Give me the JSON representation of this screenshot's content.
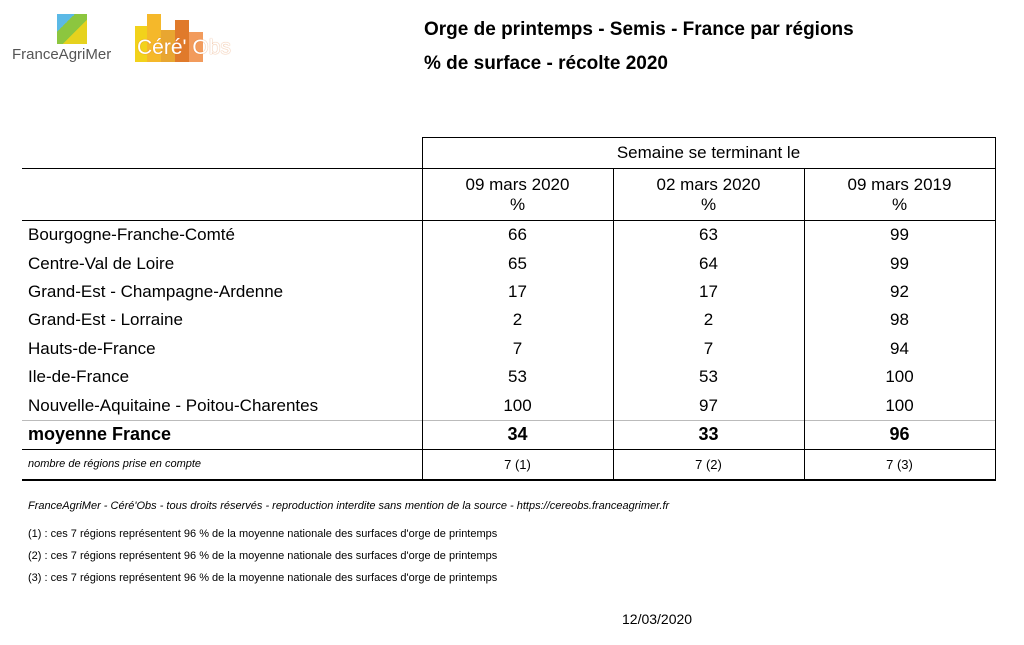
{
  "logos": {
    "franceagrimer": "FranceAgriMer",
    "cereobs": "Céré' Obs"
  },
  "title": {
    "line1": "Orge de printemps - Semis - France par régions",
    "line2": "% de surface - récolte 2020"
  },
  "table": {
    "group_header": "Semaine se terminant le",
    "columns": [
      {
        "date": "09 mars 2020",
        "unit": "%"
      },
      {
        "date": "02 mars 2020",
        "unit": "%"
      },
      {
        "date": "09 mars 2019",
        "unit": "%"
      }
    ],
    "rows": [
      {
        "region": "Bourgogne-Franche-Comté",
        "values": [
          "66",
          "63",
          "99"
        ]
      },
      {
        "region": "Centre-Val de Loire",
        "values": [
          "65",
          "64",
          "99"
        ]
      },
      {
        "region": "Grand-Est - Champagne-Ardenne",
        "values": [
          "17",
          "17",
          "92"
        ]
      },
      {
        "region": "Grand-Est - Lorraine",
        "values": [
          "2",
          "2",
          "98"
        ]
      },
      {
        "region": "Hauts-de-France",
        "values": [
          "7",
          "7",
          "94"
        ]
      },
      {
        "region": "Ile-de-France",
        "values": [
          "53",
          "53",
          "100"
        ]
      },
      {
        "region": "Nouvelle-Aquitaine - Poitou-Charentes",
        "values": [
          "100",
          "97",
          "100"
        ]
      }
    ],
    "average": {
      "label": "moyenne France",
      "values": [
        "34",
        "33",
        "96"
      ]
    },
    "count": {
      "label": "nombre de régions prise en compte",
      "values": [
        "7 (1)",
        "7 (2)",
        "7 (3)"
      ]
    }
  },
  "footer": {
    "copyright": "FranceAgriMer - Céré'Obs - tous droits réservés - reproduction interdite sans mention de la source - https://cereobs.franceagrimer.fr",
    "notes": [
      "(1)  : ces 7 régions représentent 96 % de la moyenne nationale des surfaces d'orge de printemps",
      "(2)  : ces 7 régions représentent 96 % de la moyenne nationale des surfaces d'orge de printemps",
      "(3)  : ces 7 régions représentent 96 % de la moyenne nationale des surfaces d'orge de printemps"
    ],
    "date": "12/03/2020"
  }
}
